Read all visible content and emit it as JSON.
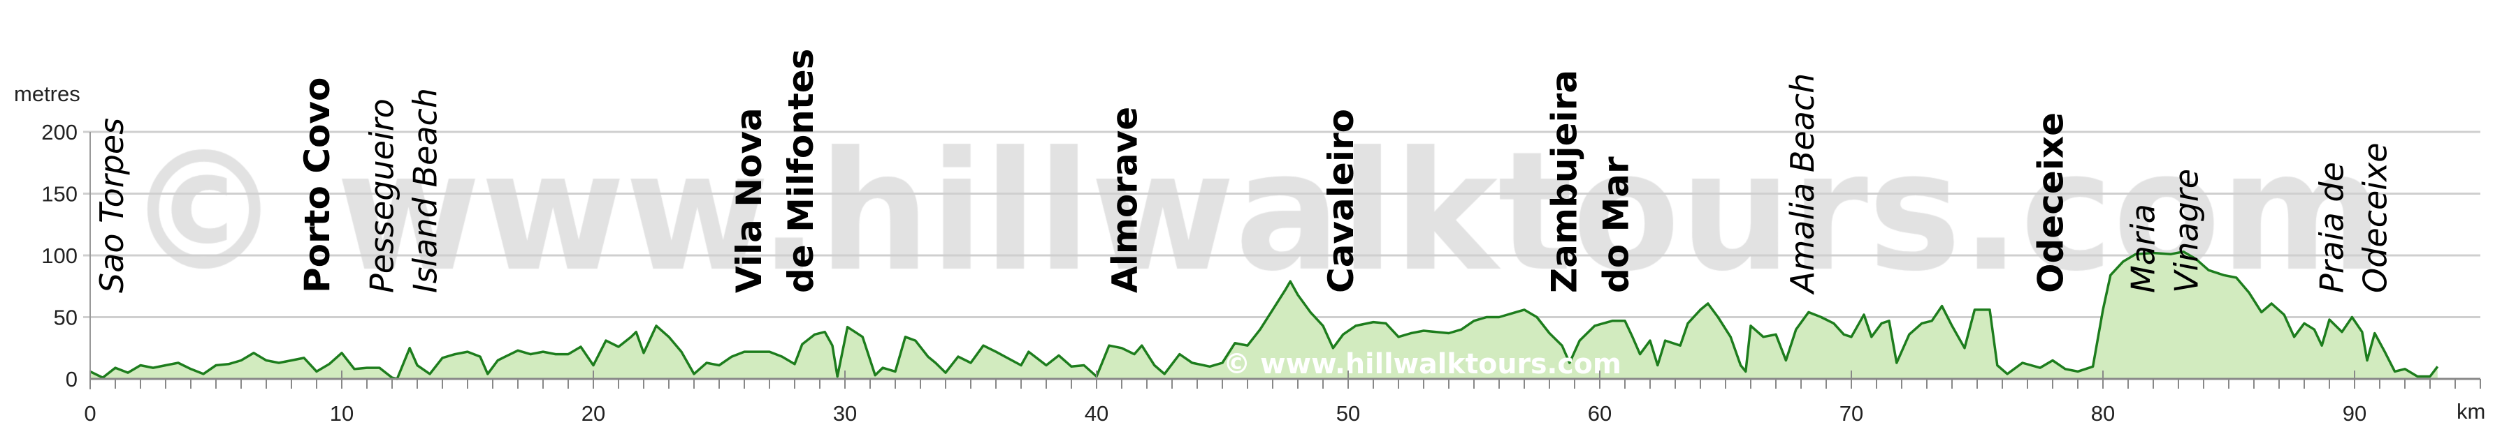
{
  "chart_data": {
    "type": "area",
    "ylabel": "metres",
    "xlabel": "km",
    "xlim": [
      0,
      95
    ],
    "ylim": [
      0,
      200
    ],
    "xticks": [
      0,
      10,
      20,
      30,
      40,
      50,
      60,
      70,
      80,
      90
    ],
    "yticks": [
      0,
      50,
      100,
      150,
      200
    ],
    "grid": true,
    "colors": {
      "line": "#1d7d1d",
      "fill": "#d2ebbf",
      "grid": "#cfcfcf",
      "watermark": "#e2e2e2"
    },
    "watermark": "© www.hillwalktours.com",
    "watermark_small": "© www.hillwalktours.com",
    "places": [
      {
        "lines": [
          "Sao Torpes"
        ],
        "km": 0.8,
        "style": "italic"
      },
      {
        "lines": [
          "Porto Covo"
        ],
        "km": 9.0,
        "style": "bold"
      },
      {
        "lines": [
          "Pessegueiro",
          "Island Beach"
        ],
        "km": 12.4,
        "style": "italic"
      },
      {
        "lines": [
          "Vila Nova",
          "de Milfontes"
        ],
        "km": 27.2,
        "style": "bold"
      },
      {
        "lines": [
          "Almorave"
        ],
        "km": 41.1,
        "style": "bold"
      },
      {
        "lines": [
          "Cavaleiro"
        ],
        "km": 49.7,
        "style": "bold"
      },
      {
        "lines": [
          "Zambujeira",
          "do Mar"
        ],
        "km": 59.6,
        "style": "bold"
      },
      {
        "lines": [
          "Amalia Beach"
        ],
        "km": 68.0,
        "style": "italic"
      },
      {
        "lines": [
          "Odeceixe"
        ],
        "km": 77.9,
        "style": "bold"
      },
      {
        "lines": [
          "Maria",
          "Vinagre"
        ],
        "km": 82.4,
        "style": "italic"
      },
      {
        "lines": [
          "Praia de",
          "Odeceixe"
        ],
        "km": 89.9,
        "style": "italic"
      }
    ],
    "series": [
      {
        "points": [
          [
            0,
            6
          ],
          [
            0.5,
            1
          ],
          [
            1,
            9
          ],
          [
            1.5,
            5
          ],
          [
            2,
            11
          ],
          [
            2.5,
            9
          ],
          [
            3,
            11
          ],
          [
            3.5,
            13
          ],
          [
            4,
            8
          ],
          [
            4.5,
            4
          ],
          [
            5,
            11
          ],
          [
            5.5,
            12
          ],
          [
            6,
            15
          ],
          [
            6.5,
            21
          ],
          [
            7,
            15
          ],
          [
            7.5,
            13
          ],
          [
            8,
            15
          ],
          [
            8.5,
            17
          ],
          [
            9,
            6
          ],
          [
            9.5,
            12
          ],
          [
            10,
            21
          ],
          [
            10.5,
            8
          ],
          [
            11,
            9
          ],
          [
            11.5,
            9
          ],
          [
            12,
            1
          ],
          [
            12.2,
            0
          ],
          [
            12.7,
            25
          ],
          [
            13,
            11
          ],
          [
            13.5,
            4
          ],
          [
            14,
            17
          ],
          [
            14.5,
            20
          ],
          [
            15,
            22
          ],
          [
            15.5,
            18
          ],
          [
            15.8,
            4
          ],
          [
            16.2,
            15
          ],
          [
            16.5,
            18
          ],
          [
            17,
            23
          ],
          [
            17.5,
            20
          ],
          [
            18,
            22
          ],
          [
            18.5,
            20
          ],
          [
            19,
            20
          ],
          [
            19.5,
            26
          ],
          [
            20,
            11
          ],
          [
            20.5,
            31
          ],
          [
            21,
            26
          ],
          [
            21.5,
            34
          ],
          [
            21.7,
            38
          ],
          [
            22,
            21
          ],
          [
            22.5,
            43
          ],
          [
            23,
            34
          ],
          [
            23.5,
            22
          ],
          [
            24,
            4
          ],
          [
            24.5,
            13
          ],
          [
            25,
            11
          ],
          [
            25.5,
            18
          ],
          [
            26,
            22
          ],
          [
            26.5,
            22
          ],
          [
            27,
            22
          ],
          [
            27.5,
            18
          ],
          [
            28,
            12
          ],
          [
            28.3,
            28
          ],
          [
            28.8,
            36
          ],
          [
            29.2,
            38
          ],
          [
            29.5,
            27
          ],
          [
            29.7,
            2
          ],
          [
            30.1,
            42
          ],
          [
            30.4,
            38
          ],
          [
            30.7,
            34
          ],
          [
            31.2,
            3
          ],
          [
            31.5,
            9
          ],
          [
            32,
            6
          ],
          [
            32.4,
            34
          ],
          [
            32.8,
            31
          ],
          [
            33.3,
            18
          ],
          [
            33.6,
            13
          ],
          [
            34,
            5
          ],
          [
            34.5,
            18
          ],
          [
            35,
            13
          ],
          [
            35.5,
            27
          ],
          [
            36,
            22
          ],
          [
            37,
            11
          ],
          [
            37.3,
            22
          ],
          [
            38,
            11
          ],
          [
            38.5,
            19
          ],
          [
            39,
            10
          ],
          [
            39.5,
            11
          ],
          [
            40,
            2
          ],
          [
            40.5,
            27
          ],
          [
            41,
            25
          ],
          [
            41.5,
            20
          ],
          [
            41.8,
            27
          ],
          [
            42.3,
            11
          ],
          [
            42.7,
            4
          ],
          [
            43.3,
            20
          ],
          [
            43.8,
            13
          ],
          [
            44.5,
            10
          ],
          [
            45,
            13
          ],
          [
            45.5,
            29
          ],
          [
            46,
            27
          ],
          [
            46.5,
            40
          ],
          [
            47,
            56
          ],
          [
            47.5,
            72
          ],
          [
            47.7,
            79
          ],
          [
            48,
            68
          ],
          [
            48.5,
            54
          ],
          [
            49,
            43
          ],
          [
            49.4,
            25
          ],
          [
            49.8,
            36
          ],
          [
            50.3,
            43
          ],
          [
            51,
            46
          ],
          [
            51.5,
            45
          ],
          [
            52,
            34
          ],
          [
            52.5,
            37
          ],
          [
            53,
            39
          ],
          [
            53.5,
            38
          ],
          [
            54,
            37
          ],
          [
            54.5,
            40
          ],
          [
            55,
            47
          ],
          [
            55.5,
            50
          ],
          [
            56,
            50
          ],
          [
            56.5,
            53
          ],
          [
            57,
            56
          ],
          [
            57.5,
            50
          ],
          [
            58,
            37
          ],
          [
            58.5,
            27
          ],
          [
            58.8,
            13
          ],
          [
            59.2,
            31
          ],
          [
            59.8,
            43
          ],
          [
            60.5,
            47
          ],
          [
            61,
            47
          ],
          [
            61.3,
            34
          ],
          [
            61.6,
            20
          ],
          [
            62,
            31
          ],
          [
            62.3,
            11
          ],
          [
            62.6,
            31
          ],
          [
            63.2,
            27
          ],
          [
            63.5,
            45
          ],
          [
            64,
            56
          ],
          [
            64.3,
            61
          ],
          [
            64.7,
            50
          ],
          [
            65.2,
            34
          ],
          [
            65.6,
            11
          ],
          [
            65.8,
            6
          ],
          [
            66,
            43
          ],
          [
            66.5,
            34
          ],
          [
            67,
            36
          ],
          [
            67.4,
            15
          ],
          [
            67.8,
            40
          ],
          [
            68.3,
            54
          ],
          [
            68.8,
            50
          ],
          [
            69.3,
            45
          ],
          [
            69.7,
            36
          ],
          [
            70,
            34
          ],
          [
            70.5,
            52
          ],
          [
            70.8,
            34
          ],
          [
            71.2,
            45
          ],
          [
            71.5,
            47
          ],
          [
            71.8,
            13
          ],
          [
            72.3,
            36
          ],
          [
            72.8,
            45
          ],
          [
            73.2,
            47
          ],
          [
            73.6,
            59
          ],
          [
            74,
            43
          ],
          [
            74.5,
            25
          ],
          [
            74.9,
            56
          ],
          [
            75.5,
            56
          ],
          [
            75.8,
            11
          ],
          [
            76.2,
            4
          ],
          [
            76.8,
            13
          ],
          [
            77.5,
            9
          ],
          [
            78,
            15
          ],
          [
            78.5,
            8
          ],
          [
            79,
            6
          ],
          [
            79.6,
            10
          ],
          [
            80,
            56
          ],
          [
            80.3,
            84
          ],
          [
            80.8,
            95
          ],
          [
            81.3,
            101
          ],
          [
            82,
            102
          ],
          [
            82.7,
            101
          ],
          [
            83.2,
            103
          ],
          [
            83.7,
            97
          ],
          [
            84.2,
            88
          ],
          [
            84.8,
            84
          ],
          [
            85.3,
            82
          ],
          [
            85.8,
            70
          ],
          [
            86.3,
            54
          ],
          [
            86.7,
            61
          ],
          [
            87.2,
            52
          ],
          [
            87.6,
            34
          ],
          [
            88,
            45
          ],
          [
            88.4,
            40
          ],
          [
            88.7,
            27
          ],
          [
            89,
            48
          ],
          [
            89.5,
            38
          ],
          [
            89.9,
            50
          ],
          [
            90.3,
            38
          ],
          [
            90.5,
            15
          ],
          [
            90.8,
            37
          ],
          [
            91.2,
            22
          ],
          [
            91.6,
            6
          ],
          [
            92,
            8
          ],
          [
            92.5,
            2
          ],
          [
            93,
            2
          ],
          [
            93.3,
            10
          ]
        ]
      }
    ]
  }
}
